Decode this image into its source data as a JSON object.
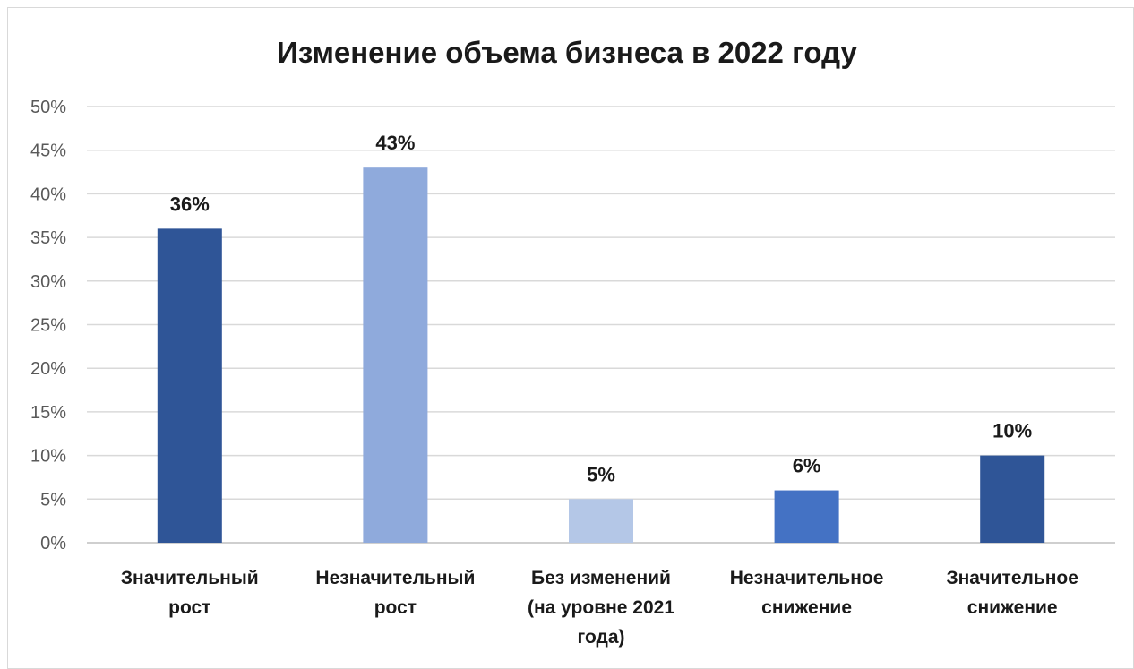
{
  "chart_data": {
    "type": "bar",
    "title": "Изменение объема бизнеса в 2022 году",
    "xlabel": "",
    "ylabel": "",
    "ylim": [
      0,
      50
    ],
    "yticks": [
      "0%",
      "5%",
      "10%",
      "15%",
      "20%",
      "25%",
      "30%",
      "35%",
      "40%",
      "45%",
      "50%"
    ],
    "grid": true,
    "legend": "none",
    "categories": [
      [
        "Значительный",
        "рост"
      ],
      [
        "Незначительный",
        "рост"
      ],
      [
        "Без изменений",
        "(на уровне 2021",
        "года)"
      ],
      [
        "Незначительное",
        "снижение"
      ],
      [
        "Значительное",
        "снижение"
      ]
    ],
    "values": [
      36,
      43,
      5,
      6,
      10
    ],
    "data_labels": [
      "36%",
      "43%",
      "5%",
      "6%",
      "10%"
    ],
    "colors": [
      "#2f5597",
      "#8faadc",
      "#b4c7e7",
      "#4472c4",
      "#2f5597"
    ]
  }
}
